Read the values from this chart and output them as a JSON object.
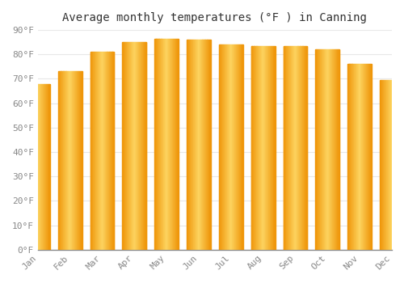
{
  "title": "Average monthly temperatures (°F ) in Canning",
  "months": [
    "Jan",
    "Feb",
    "Mar",
    "Apr",
    "May",
    "Jun",
    "Jul",
    "Aug",
    "Sep",
    "Oct",
    "Nov",
    "Dec"
  ],
  "values": [
    68,
    73,
    81,
    85,
    86.5,
    86,
    84,
    83.5,
    83.5,
    82,
    76,
    69.5
  ],
  "bar_color_left": "#F5A800",
  "bar_color_center": "#FDD460",
  "bar_color_right": "#E8950A",
  "bar_edge_color": "#C8850A",
  "ylim": [
    0,
    90
  ],
  "yticks": [
    0,
    10,
    20,
    30,
    40,
    50,
    60,
    70,
    80,
    90
  ],
  "ytick_labels": [
    "0°F",
    "10°F",
    "20°F",
    "30°F",
    "40°F",
    "50°F",
    "60°F",
    "70°F",
    "80°F",
    "90°F"
  ],
  "background_color": "#FFFFFF",
  "grid_color": "#E8E8E8",
  "title_fontsize": 10,
  "tick_fontsize": 8
}
